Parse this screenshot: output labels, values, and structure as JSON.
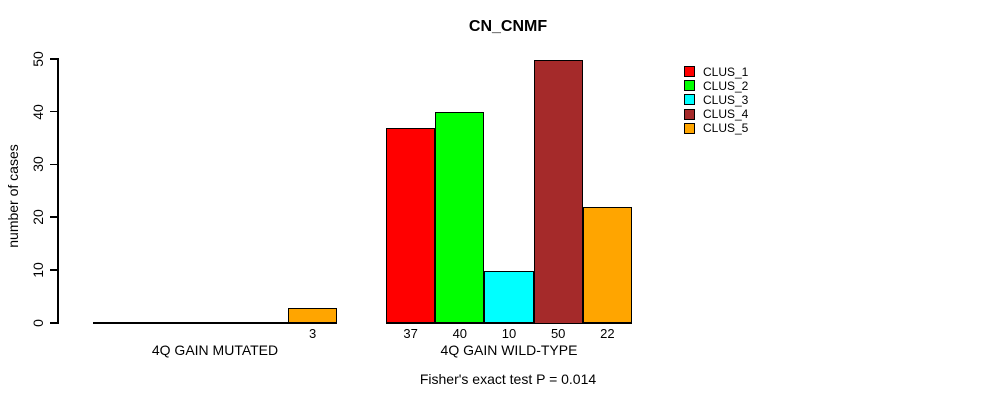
{
  "title": "CN_CNMF",
  "chart_data": {
    "type": "bar",
    "title": "CN_CNMF",
    "ylabel": "number of cases",
    "xlabel": "",
    "annotation": "Fisher's exact test P = 0.014",
    "categories": [
      "4Q GAIN MUTATED",
      "4Q GAIN WILD-TYPE"
    ],
    "series": [
      {
        "name": "CLUS_1",
        "color": "#FF0000",
        "values": [
          0,
          37
        ]
      },
      {
        "name": "CLUS_2",
        "color": "#00FF00",
        "values": [
          0,
          40
        ]
      },
      {
        "name": "CLUS_3",
        "color": "#00FFFF",
        "values": [
          0,
          10
        ]
      },
      {
        "name": "CLUS_4",
        "color": "#A52A2A",
        "values": [
          0,
          50
        ]
      },
      {
        "name": "CLUS_5",
        "color": "#FFA500",
        "values": [
          3,
          22
        ]
      }
    ],
    "bar_value_labels": {
      "shown_if_positive": true,
      "group1_labels": [
        "3"
      ],
      "group2_labels": [
        "37",
        "40",
        "10",
        "50",
        "22"
      ]
    },
    "ylim": [
      0,
      50
    ],
    "yticks": [
      0,
      10,
      20,
      30,
      40,
      50
    ],
    "grid": false,
    "legend_position": "right-outside",
    "legend_entries": [
      "CLUS_1",
      "CLUS_2",
      "CLUS_3",
      "CLUS_4",
      "CLUS_5"
    ]
  }
}
